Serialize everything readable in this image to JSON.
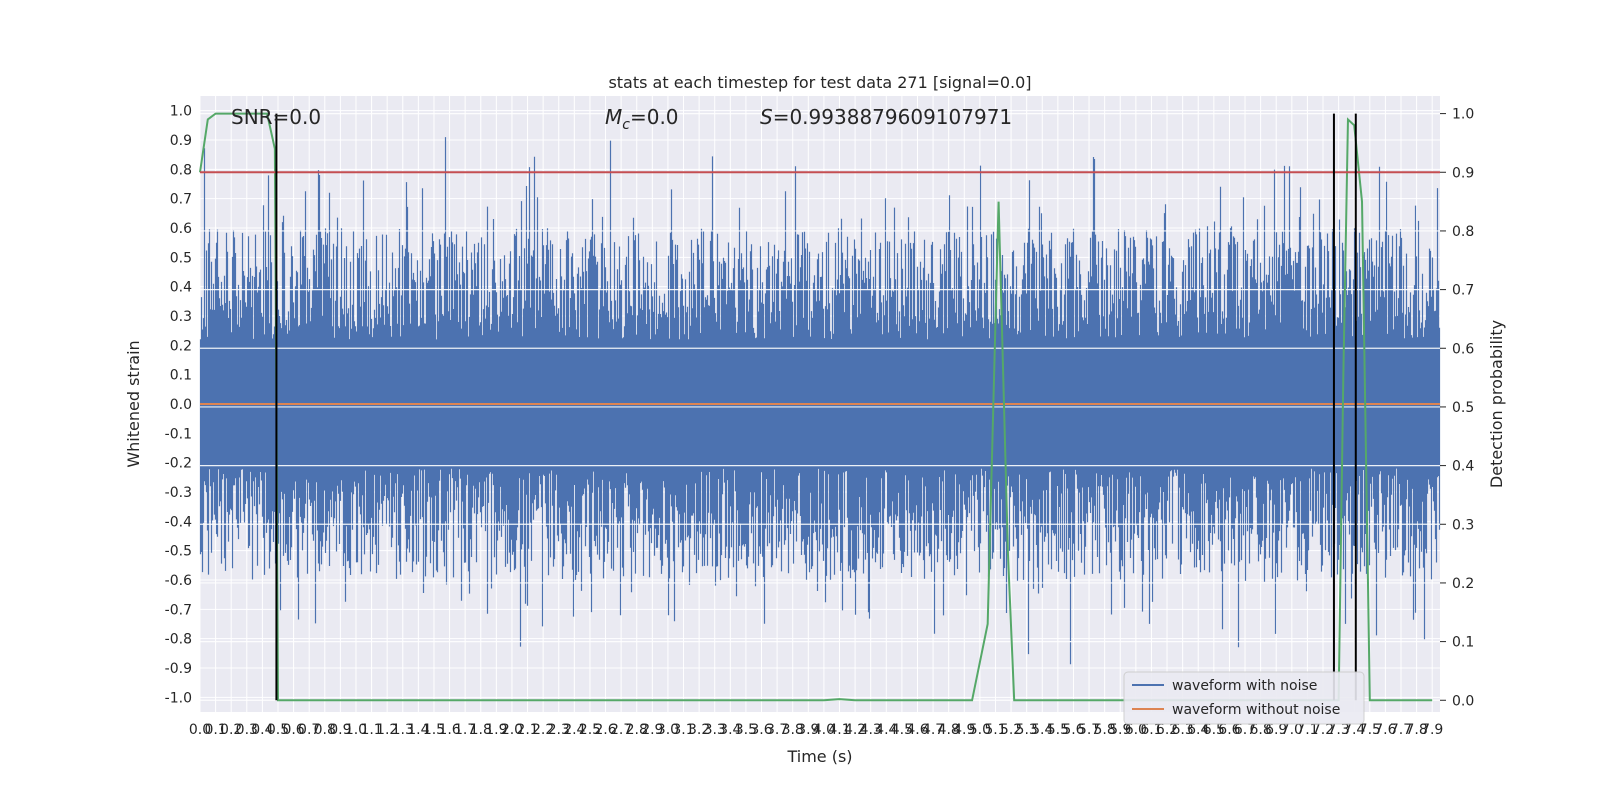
{
  "chart_data": {
    "type": "line",
    "title": "stats at each timestep for test data 271 [signal=0.0]",
    "xlabel": "Time (s)",
    "ylabel": "Whitened strain",
    "ylabel_right": "Detection probability",
    "annotations": {
      "snr": "SNR=0.0",
      "mc_symbol": "M",
      "mc_sub": "c",
      "mc_value": "=0.0",
      "s_symbol": "S",
      "s_value": "=0.9938879609107971"
    },
    "xlim": [
      0.0,
      7.95
    ],
    "ylim": [
      -1.05,
      1.05
    ],
    "ylim_right": [
      -0.02,
      1.03
    ],
    "x_ticks": [
      0.0,
      0.1,
      0.2,
      0.3,
      0.4,
      0.5,
      0.6,
      0.7,
      0.8,
      0.9,
      1.0,
      1.1,
      1.2,
      1.3,
      1.4,
      1.5,
      1.6,
      1.7,
      1.8,
      1.9,
      2.0,
      2.1,
      2.2,
      2.3,
      2.4,
      2.5,
      2.6,
      2.7,
      2.8,
      2.9,
      3.0,
      3.1,
      3.2,
      3.3,
      3.4,
      3.5,
      3.6,
      3.7,
      3.8,
      3.9,
      4.0,
      4.1,
      4.2,
      4.3,
      4.4,
      4.5,
      4.6,
      4.7,
      4.8,
      4.9,
      5.0,
      5.1,
      5.2,
      5.3,
      5.4,
      5.5,
      5.6,
      5.7,
      5.8,
      5.9,
      6.0,
      6.1,
      6.2,
      6.3,
      6.4,
      6.5,
      6.6,
      6.7,
      6.8,
      6.9,
      7.0,
      7.1,
      7.2,
      7.3,
      7.4,
      7.5,
      7.6,
      7.7,
      7.8,
      7.9
    ],
    "y_ticks": [
      -1.0,
      -0.9,
      -0.8,
      -0.7,
      -0.6,
      -0.5,
      -0.4,
      -0.3,
      -0.2,
      -0.1,
      0.0,
      0.1,
      0.2,
      0.3,
      0.4,
      0.5,
      0.6,
      0.7,
      0.8,
      0.9,
      1.0
    ],
    "y_ticks_right": [
      0.0,
      0.1,
      0.2,
      0.3,
      0.4,
      0.5,
      0.6,
      0.7,
      0.8,
      0.9,
      1.0
    ],
    "legend_placement": "lower-right",
    "grid": true,
    "series": [
      {
        "name": "waveform with noise",
        "axis": "left",
        "color": "#4c72b0",
        "style": "dense noise in approx [-0.9, 0.99]"
      },
      {
        "name": "waveform without noise",
        "axis": "left",
        "color": "#dd8452",
        "x": [
          0.0,
          7.95
        ],
        "y": [
          0.0,
          0.0
        ]
      },
      {
        "axis": "right",
        "color": "#55a868",
        "x": [
          0.0,
          0.05,
          0.1,
          0.15,
          0.2,
          0.3,
          0.4,
          0.43,
          0.48,
          0.49,
          0.5,
          0.55,
          0.6,
          1.0,
          2.0,
          3.0,
          4.0,
          4.1,
          4.2,
          4.5,
          4.95,
          5.05,
          5.12,
          5.18,
          5.22,
          5.4,
          6.0,
          7.0,
          7.3,
          7.33,
          7.36,
          7.4,
          7.45,
          7.5,
          7.55,
          7.6,
          7.9
        ],
        "y": [
          0.9,
          0.99,
          1.0,
          1.0,
          1.0,
          1.0,
          1.0,
          1.0,
          0.94,
          0.5,
          0.0,
          0.0,
          0.0,
          0.0,
          0.0,
          0.0,
          0.0,
          0.002,
          0.0,
          0.0,
          0.0,
          0.13,
          0.85,
          0.25,
          0.0,
          0.0,
          0.0,
          0.0,
          0.0,
          0.55,
          0.99,
          0.98,
          0.85,
          0.0,
          0.0,
          0.0,
          0.0
        ]
      },
      {
        "axis": "right",
        "color": "#c44e52",
        "x": [
          0.0,
          7.95
        ],
        "y": [
          0.9,
          0.9
        ]
      }
    ],
    "vertical_markers": [
      0.49,
      7.27,
      7.41
    ]
  }
}
